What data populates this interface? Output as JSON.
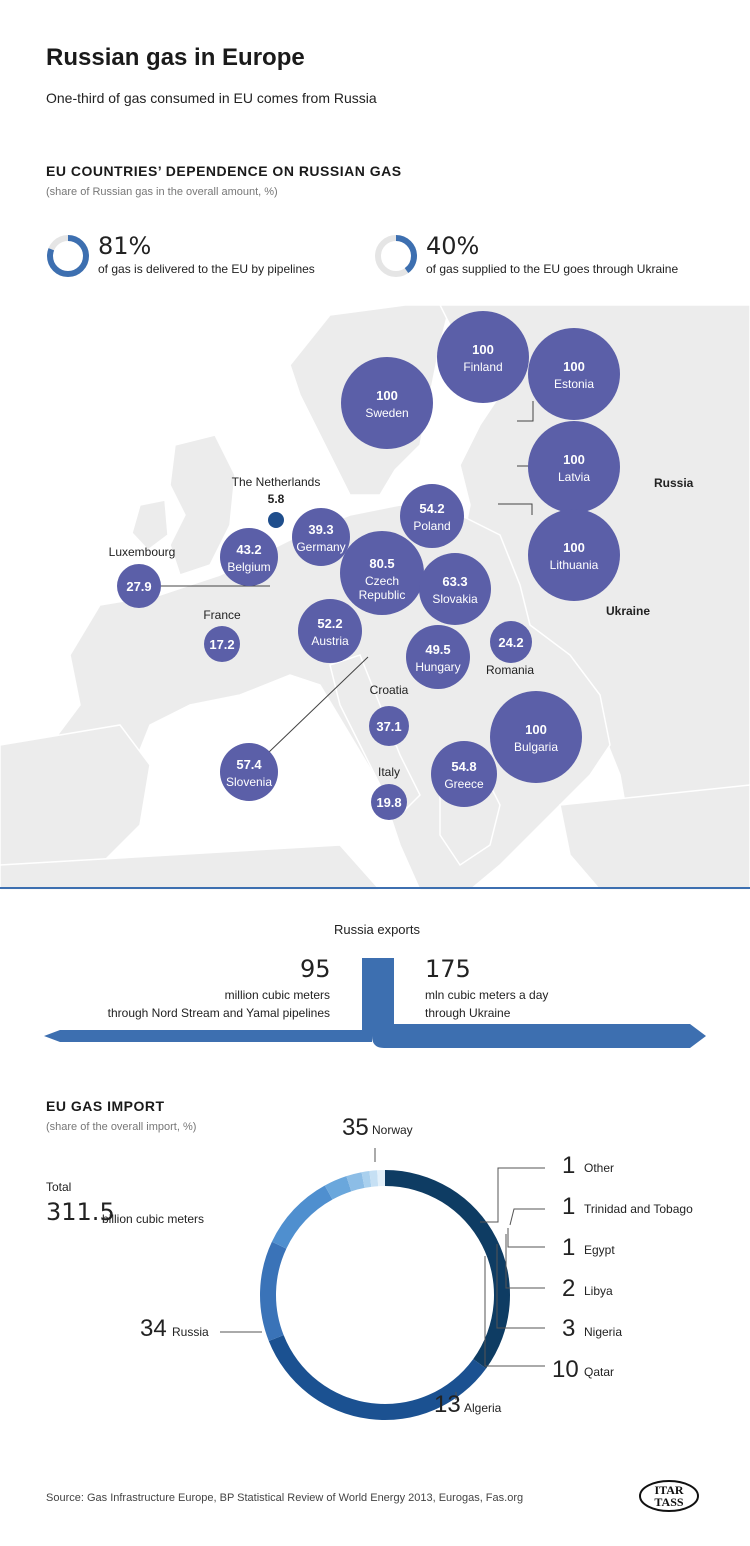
{
  "header": {
    "title": "Russian gas in Europe",
    "subtitle": "One-third of gas consumed in EU comes from Russia"
  },
  "dependence": {
    "title": "EU COUNTRIES’ DEPENDENCE ON RUSSIAN GAS",
    "note": "(share of Russian gas in the overall amount, %)",
    "stat1": {
      "value": "81%",
      "text": "of gas is delivered to the EU by pipelines",
      "fraction": 0.81
    },
    "stat2": {
      "value": "40%",
      "text": "of gas supplied to the EU goes through Ukraine",
      "fraction": 0.4
    },
    "map_labels": {
      "russia": "Russia",
      "ukraine": "Ukraine"
    },
    "colors": {
      "bubble": "#5b5fa8",
      "netherlands": "#1f4e8c",
      "land": "#eeeeee",
      "accent": "#3d6fb0"
    }
  },
  "exports": {
    "title": "Russia exports",
    "left": {
      "value": "95",
      "line1": "million cubic meters",
      "line2": "through Nord Stream and Yamal pipelines"
    },
    "right": {
      "value": "175",
      "line1": "mln cubic meters a day",
      "line2": "through Ukraine"
    }
  },
  "import": {
    "title": "EU GAS IMPORT",
    "note": "(share of the overall import, %)",
    "total_label": "Total",
    "total_value": "311.5",
    "total_unit": "billion cubic meters"
  },
  "footer": {
    "source": "Source: Gas Infrastructure Europe, BP Statistical Review of World Energy 2013, Eurogas, Fas.org",
    "logo_line1": "ITAR",
    "logo_line2": "TASS"
  },
  "chart_data": [
    {
      "type": "bubble-map",
      "title": "EU COUNTRIES’ DEPENDENCE ON RUSSIAN GAS",
      "unit": "%",
      "points": [
        {
          "country": "Finland",
          "value": 100
        },
        {
          "country": "Estonia",
          "value": 100
        },
        {
          "country": "Sweden",
          "value": 100
        },
        {
          "country": "Latvia",
          "value": 100
        },
        {
          "country": "The Netherlands",
          "value": 5.8
        },
        {
          "country": "Poland",
          "value": 54.2
        },
        {
          "country": "Lithuania",
          "value": 100
        },
        {
          "country": "Germany",
          "value": 39.3
        },
        {
          "country": "Belgium",
          "value": 43.2
        },
        {
          "country": "Luxembourg",
          "value": 27.9
        },
        {
          "country": "Czech Republic",
          "value": 80.5
        },
        {
          "country": "Slovakia",
          "value": 63.3
        },
        {
          "country": "France",
          "value": 17.2
        },
        {
          "country": "Austria",
          "value": 52.2
        },
        {
          "country": "Romania",
          "value": 24.2
        },
        {
          "country": "Hungary",
          "value": 49.5
        },
        {
          "country": "Croatia",
          "value": 37.1
        },
        {
          "country": "Bulgaria",
          "value": 100
        },
        {
          "country": "Slovenia",
          "value": 57.4
        },
        {
          "country": "Italy",
          "value": 19.8
        },
        {
          "country": "Greece",
          "value": 54.8
        }
      ]
    },
    {
      "type": "pie",
      "title": "EU GAS IMPORT",
      "unit": "%",
      "slices": [
        {
          "label": "Norway",
          "value": 35,
          "color": "#0e3c63"
        },
        {
          "label": "Russia",
          "value": 34,
          "color": "#1b5191"
        },
        {
          "label": "Algeria",
          "value": 13,
          "color": "#3a73b8"
        },
        {
          "label": "Qatar",
          "value": 10,
          "color": "#4f8fcf"
        },
        {
          "label": "Nigeria",
          "value": 3,
          "color": "#6aa7dc"
        },
        {
          "label": "Libya",
          "value": 2,
          "color": "#8cbde6"
        },
        {
          "label": "Egypt",
          "value": 1,
          "color": "#a9d0ee"
        },
        {
          "label": "Trinidad and Tobago",
          "value": 1,
          "color": "#c6e0f4"
        },
        {
          "label": "Other",
          "value": 1,
          "color": "#e3f0fa"
        }
      ]
    }
  ]
}
